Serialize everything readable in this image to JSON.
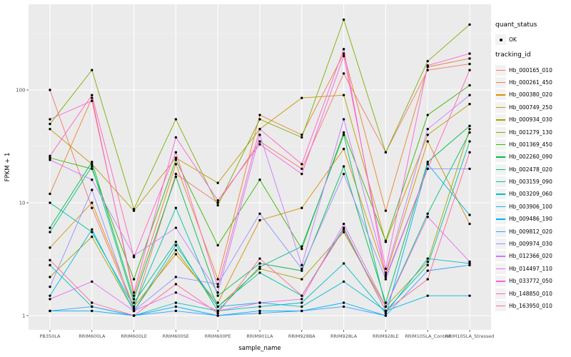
{
  "figure": {
    "x_axis": {
      "title": "sample_name"
    },
    "y_axis": {
      "title": "FPKM + 1",
      "tick_labels": [
        "100",
        "10",
        "1"
      ]
    },
    "legend": {
      "quant_status_title": "quant_status",
      "ok_label": "OK",
      "tracking_title": "tracking_id"
    },
    "colors": {
      "panel_bg": "#EBEBEB",
      "grid_major": "#FFFFFF",
      "grid_minor": "#F5F5F5",
      "tick_text": "#4D4D4D",
      "marker": "#000000",
      "legend_key_bg": "#F2F2F2"
    }
  },
  "chart_data": {
    "type": "line",
    "title": "",
    "xlabel": "sample_name",
    "ylabel": "FPKM + 1",
    "yscale": "log10",
    "ylim": [
      1,
      600
    ],
    "y_major_ticks": [
      1,
      10,
      100
    ],
    "y_minor_ticks": [
      3.1623,
      31.623,
      316.23
    ],
    "grid": true,
    "legend_position": "right",
    "quant_status": {
      "label": "OK",
      "marker": "point",
      "color": "#000000"
    },
    "x": [
      "PB350LA",
      "RRIM600LA",
      "RRIM600LE",
      "RRIM600SE",
      "RRIM600PE",
      "RRIM901LA",
      "RRIM928BA",
      "RRIM928LA",
      "RRIM928LE",
      "RRIM105LA_Control",
      "RRIM105LA_Stressed"
    ],
    "series": [
      {
        "name": "Hb_000165_010",
        "color": "#F8766D",
        "values": [
          100,
          9,
          1.15,
          18,
          10,
          35,
          20,
          140,
          28,
          150,
          170
        ]
      },
      {
        "name": "Hb_000261_450",
        "color": "#EA8331",
        "values": [
          12,
          85,
          1.5,
          22,
          2.1,
          60,
          40,
          210,
          8.5,
          160,
          190
        ]
      },
      {
        "name": "Hb_000380_020",
        "color": "#D89000",
        "values": [
          4,
          10,
          1.2,
          3.5,
          1.3,
          7,
          9,
          30,
          2.3,
          35,
          6.5
        ]
      },
      {
        "name": "Hb_000749_250",
        "color": "#C09B00",
        "values": [
          45,
          22,
          8.5,
          25,
          15,
          45,
          85,
          90,
          4.5,
          40,
          75
        ]
      },
      {
        "name": "Hb_000934_030",
        "color": "#A3A500",
        "values": [
          2.2,
          5,
          1.1,
          3.8,
          1.2,
          2.6,
          2.1,
          5.5,
          1.2,
          3,
          45
        ]
      },
      {
        "name": "Hb_001279_130",
        "color": "#7CAE00",
        "values": [
          50,
          150,
          8.8,
          55,
          9.5,
          55,
          38,
          420,
          28,
          180,
          380
        ]
      },
      {
        "name": "Hb_001369_450",
        "color": "#39B600",
        "values": [
          25,
          20,
          2.1,
          24,
          4.2,
          16,
          3.9,
          42,
          4.6,
          60,
          110
        ]
      },
      {
        "name": "Hb_002260_090",
        "color": "#00BB4E",
        "values": [
          6,
          23,
          1.4,
          17,
          1.5,
          2.9,
          2.5,
          21,
          1.3,
          23,
          48
        ]
      },
      {
        "name": "Hb_002478_020",
        "color": "#00BF7D",
        "values": [
          5.5,
          21,
          1.3,
          4.5,
          1.1,
          2.7,
          4.1,
          40,
          1.2,
          8,
          42
        ]
      },
      {
        "name": "Hb_003159_090",
        "color": "#00C1A3",
        "values": [
          10,
          5.5,
          1.2,
          9,
          1.2,
          2.4,
          1.5,
          6,
          1.1,
          2.8,
          35
        ]
      },
      {
        "name": "Hb_003209_060",
        "color": "#00BFC4",
        "values": [
          2.8,
          1.2,
          1.0,
          1.3,
          1.1,
          1.2,
          1.3,
          2.9,
          1.05,
          3.2,
          2.9
        ]
      },
      {
        "name": "Hb_003906_100",
        "color": "#00BAE0",
        "values": [
          1.5,
          5.8,
          1.1,
          4.2,
          1.2,
          1.3,
          1.2,
          2.0,
          1.1,
          1.5,
          1.5
        ]
      },
      {
        "name": "Hb_009486_190",
        "color": "#00B0F6",
        "values": [
          1.1,
          1.1,
          1.0,
          1.2,
          1.0,
          1.1,
          1.1,
          1.3,
          1.0,
          22,
          7.8
        ]
      },
      {
        "name": "Hb_009812_020",
        "color": "#35A2FF",
        "values": [
          1.1,
          1.2,
          1.0,
          1.1,
          1.0,
          1.05,
          1.1,
          1.2,
          1.0,
          2.5,
          2.8
        ]
      },
      {
        "name": "Hb_009974_030",
        "color": "#9590FF",
        "values": [
          1.8,
          13,
          1.1,
          2.2,
          1.9,
          8,
          2.6,
          18,
          2.1,
          20,
          20
        ]
      },
      {
        "name": "Hb_012366_020",
        "color": "#C77CFF",
        "values": [
          24,
          16,
          3.4,
          6,
          1.6,
          40,
          2.8,
          55,
          2.4,
          45,
          90
        ]
      },
      {
        "name": "Hb_014497_110",
        "color": "#E76BF3",
        "values": [
          1.4,
          2.0,
          1.1,
          1.6,
          1.1,
          1.3,
          1.4,
          6.5,
          1.2,
          7.5,
          3.0
        ]
      },
      {
        "name": "Hb_033772_050",
        "color": "#FA62DB",
        "values": [
          55,
          80,
          1.6,
          38,
          10.5,
          33,
          18,
          200,
          2.6,
          165,
          210
        ]
      },
      {
        "name": "Hb_148850_010",
        "color": "#FF62BC",
        "values": [
          26,
          90,
          3.3,
          28,
          1.8,
          45,
          22,
          230,
          2.2,
          20,
          150
        ]
      },
      {
        "name": "Hb_163950_010",
        "color": "#FF6A98",
        "values": [
          3.1,
          1.3,
          1.0,
          1.9,
          1.05,
          3.2,
          1.5,
          5.8,
          1.1,
          2.1,
          28
        ]
      }
    ]
  }
}
